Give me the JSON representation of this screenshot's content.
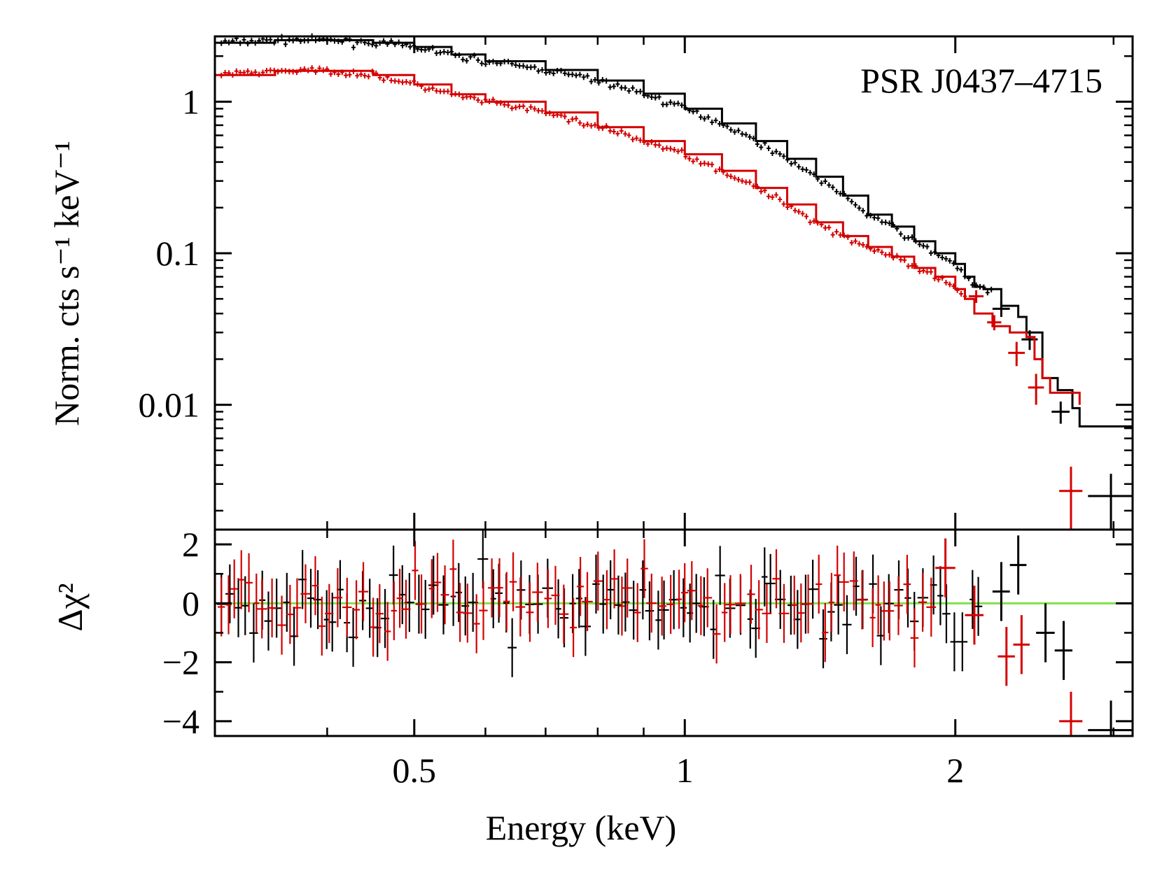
{
  "chart_data": [
    {
      "type": "scatter",
      "panel": "spectrum",
      "annotation": "PSR J0437–4715",
      "ylabel": "Norm. cts s⁻¹ keV⁻¹",
      "yscale": "log",
      "ylim": [
        0.0015,
        2.7
      ],
      "xlim": [
        0.3,
        3.15
      ],
      "yticklabels": [
        "0.01",
        "0.1",
        "1"
      ],
      "yticks": [
        0.01,
        0.1,
        1
      ],
      "series": [
        {
          "name": "black",
          "color": "#000000",
          "model": [
            [
              0.3,
              2.45
            ],
            [
              0.35,
              2.55
            ],
            [
              0.4,
              2.55
            ],
            [
              0.45,
              2.45
            ],
            [
              0.5,
              2.3
            ],
            [
              0.55,
              2.05
            ],
            [
              0.6,
              1.85
            ],
            [
              0.7,
              1.62
            ],
            [
              0.8,
              1.38
            ],
            [
              0.9,
              1.13
            ],
            [
              1.0,
              0.9
            ],
            [
              1.1,
              0.72
            ],
            [
              1.2,
              0.55
            ],
            [
              1.3,
              0.42
            ],
            [
              1.4,
              0.32
            ],
            [
              1.5,
              0.24
            ],
            [
              1.6,
              0.18
            ],
            [
              1.7,
              0.15
            ],
            [
              1.8,
              0.12
            ],
            [
              1.9,
              0.1
            ],
            [
              2.0,
              0.085
            ],
            [
              2.05,
              0.07
            ],
            [
              2.1,
              0.06
            ],
            [
              2.15,
              0.058
            ],
            [
              2.2,
              0.058
            ],
            [
              2.25,
              0.045
            ],
            [
              2.3,
              0.045
            ],
            [
              2.35,
              0.038
            ],
            [
              2.4,
              0.03
            ],
            [
              2.45,
              0.03
            ],
            [
              2.5,
              0.015
            ],
            [
              2.55,
              0.015
            ],
            [
              2.6,
              0.0125
            ],
            [
              2.7,
              0.0095
            ],
            [
              2.75,
              0.0072
            ],
            [
              3.15,
              0.0072
            ]
          ],
          "points": [
            {
              "x": 2.25,
              "xerr": 0.05,
              "y": 0.043,
              "yerr": 0.005
            },
            {
              "x": 2.42,
              "xerr": 0.05,
              "y": 0.027,
              "yerr": 0.004
            },
            {
              "x": 2.62,
              "xerr": 0.06,
              "y": 0.009,
              "yerr": 0.0015
            },
            {
              "x": 2.98,
              "xerr": 0.17,
              "y": 0.0025,
              "yerr": 0.001
            }
          ]
        },
        {
          "name": "red",
          "color": "#d40000",
          "model": [
            [
              0.3,
              1.5
            ],
            [
              0.35,
              1.6
            ],
            [
              0.4,
              1.6
            ],
            [
              0.45,
              1.5
            ],
            [
              0.5,
              1.3
            ],
            [
              0.55,
              1.12
            ],
            [
              0.6,
              1.0
            ],
            [
              0.7,
              0.85
            ],
            [
              0.8,
              0.68
            ],
            [
              0.9,
              0.55
            ],
            [
              1.0,
              0.45
            ],
            [
              1.1,
              0.35
            ],
            [
              1.2,
              0.27
            ],
            [
              1.3,
              0.21
            ],
            [
              1.4,
              0.16
            ],
            [
              1.5,
              0.13
            ],
            [
              1.6,
              0.11
            ],
            [
              1.7,
              0.095
            ],
            [
              1.8,
              0.08
            ],
            [
              1.9,
              0.07
            ],
            [
              2.0,
              0.058
            ],
            [
              2.05,
              0.05
            ],
            [
              2.1,
              0.04
            ],
            [
              2.2,
              0.033
            ],
            [
              2.3,
              0.03
            ],
            [
              2.4,
              0.028
            ],
            [
              2.45,
              0.02
            ],
            [
              2.5,
              0.015
            ],
            [
              2.55,
              0.012
            ],
            [
              2.75,
              0.01
            ]
          ],
          "points": [
            {
              "x": 2.11,
              "xerr": 0.04,
              "y": 0.052,
              "yerr": 0.005
            },
            {
              "x": 2.21,
              "xerr": 0.04,
              "y": 0.035,
              "yerr": 0.004
            },
            {
              "x": 2.34,
              "xerr": 0.05,
              "y": 0.022,
              "yerr": 0.004
            },
            {
              "x": 2.46,
              "xerr": 0.05,
              "y": 0.013,
              "yerr": 0.003
            },
            {
              "x": 2.69,
              "xerr": 0.08,
              "y": 0.0027,
              "yerr": 0.0012
            }
          ]
        }
      ]
    },
    {
      "type": "scatter",
      "panel": "residuals",
      "ylabel": "Δχ²",
      "xlabel": "Energy (keV)",
      "xscale": "log",
      "xlim": [
        0.3,
        3.15
      ],
      "ylim": [
        -4.5,
        2.5
      ],
      "xticks": [
        0.5,
        1,
        2
      ],
      "xticklabels": [
        "0.5",
        "1",
        "2"
      ],
      "yticks": [
        -4,
        -2,
        0,
        2
      ],
      "yticklabels": [
        "−4",
        "−2",
        "0",
        "2"
      ],
      "zero_line_color": "#7fe24a",
      "series": [
        {
          "name": "black",
          "color": "#000000",
          "points": [
            {
              "x": 2.25,
              "xerr": 0.05,
              "y": 0.4,
              "yerr": 1.0
            },
            {
              "x": 2.35,
              "xerr": 0.05,
              "y": 1.3,
              "yerr": 1.0
            },
            {
              "x": 2.52,
              "xerr": 0.06,
              "y": -1.0,
              "yerr": 1.0
            },
            {
              "x": 2.64,
              "xerr": 0.06,
              "y": -1.6,
              "yerr": 1.0
            },
            {
              "x": 2.98,
              "xerr": 0.17,
              "y": -4.3,
              "yerr": 1.0
            }
          ]
        },
        {
          "name": "red",
          "color": "#d40000",
          "points": [
            {
              "x": 1.95,
              "xerr": 0.05,
              "y": 1.2,
              "yerr": 1.0
            },
            {
              "x": 2.1,
              "xerr": 0.05,
              "y": -0.4,
              "yerr": 1.0
            },
            {
              "x": 2.28,
              "xerr": 0.05,
              "y": -1.8,
              "yerr": 1.0
            },
            {
              "x": 2.37,
              "xerr": 0.05,
              "y": -1.4,
              "yerr": 1.0
            },
            {
              "x": 2.69,
              "xerr": 0.08,
              "y": -4.0,
              "yerr": 1.0
            }
          ]
        }
      ]
    }
  ]
}
